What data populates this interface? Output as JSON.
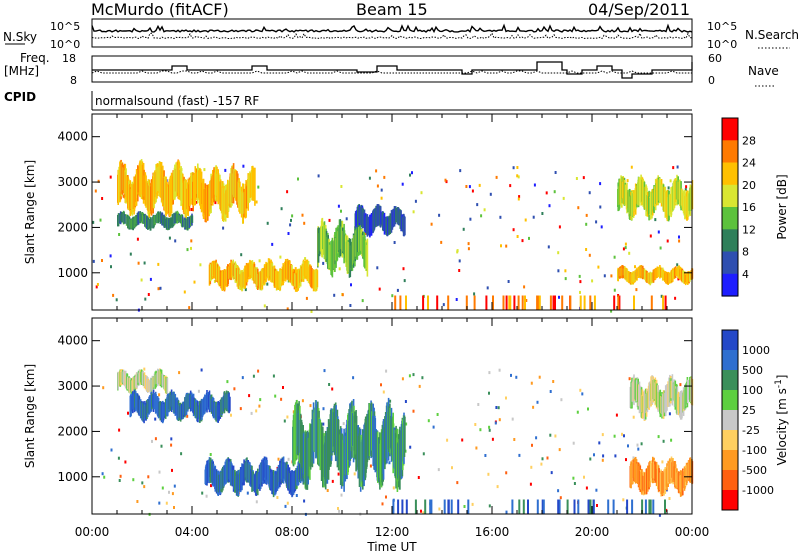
{
  "header": {
    "station": "McMurdo (fitACF)",
    "beam": "Beam 15",
    "date": "04/Sep/2011"
  },
  "top_panels": {
    "nsky_label": "N.Sky",
    "nsky_ticks": [
      "10^5",
      "10^0"
    ],
    "nsearch_label": "N.Search",
    "nsearch_ticks": [
      "10^5",
      "10^0"
    ],
    "freq_label_1": "Freq.",
    "freq_label_2": "[MHz]",
    "freq_ticks": [
      "18",
      "8"
    ],
    "nave_label": "Nave",
    "nave_ticks": [
      "60",
      "0"
    ],
    "cpid_label": "CPID",
    "cpid_text": "normalsound (fast) -157 RF"
  },
  "chart_data": [
    {
      "type": "heatmap",
      "title": "",
      "xlabel": "Time UT",
      "ylabel": "Slant Range [km]",
      "ylim": [
        180,
        4500
      ],
      "yticks": [
        "4000",
        "3000",
        "2000",
        "1000"
      ],
      "xticks": [
        "00:00",
        "04:00",
        "08:00",
        "12:00",
        "16:00",
        "20:00",
        "00:00"
      ],
      "colorbar": {
        "label": "Power [dB]",
        "ticks": [
          "28",
          "24",
          "20",
          "16",
          "12",
          "8",
          "4"
        ],
        "colors": [
          "#ff0000",
          "#ff7a00",
          "#ffc000",
          "#d9e632",
          "#5cc23c",
          "#2f7f5a",
          "#2f4fb0",
          "#1e1eff"
        ]
      },
      "echo_regions_approx": [
        {
          "t_start": "01:00",
          "t_end": "04:00",
          "range_km": [
            2400,
            3300
          ],
          "power_db": 24
        },
        {
          "t_start": "04:00",
          "t_end": "06:30",
          "range_km": [
            2300,
            3200
          ],
          "power_db": 22
        },
        {
          "t_start": "01:00",
          "t_end": "04:00",
          "range_km": [
            2000,
            2300
          ],
          "power_db": 10
        },
        {
          "t_start": "04:40",
          "t_end": "09:00",
          "range_km": [
            700,
            1200
          ],
          "power_db": 22
        },
        {
          "t_start": "09:00",
          "t_end": "11:00",
          "range_km": [
            1100,
            2000
          ],
          "power_db": 14
        },
        {
          "t_start": "10:30",
          "t_end": "12:30",
          "range_km": [
            1900,
            2400
          ],
          "power_db": 8
        },
        {
          "t_start": "21:00",
          "t_end": "24:00",
          "range_km": [
            800,
            1100
          ],
          "power_db": 24
        },
        {
          "t_start": "21:00",
          "t_end": "24:00",
          "range_km": [
            2300,
            3000
          ],
          "power_db": 18
        }
      ]
    },
    {
      "type": "heatmap",
      "title": "",
      "xlabel": "Time UT",
      "ylabel": "Slant Range [km]",
      "ylim": [
        180,
        4500
      ],
      "yticks": [
        "4000",
        "3000",
        "2000",
        "1000"
      ],
      "xticks": [
        "00:00",
        "04:00",
        "08:00",
        "12:00",
        "16:00",
        "20:00",
        "00:00"
      ],
      "colorbar": {
        "label": "Velocity [m s",
        "label_sup": "-1",
        "label_end": "]",
        "ticks": [
          "1000",
          "500",
          "100",
          "25",
          "-25",
          "-100",
          "-500",
          "-1000"
        ],
        "colors": [
          "#2448c8",
          "#2f6fd0",
          "#3a8f5a",
          "#5ed040",
          "#c8c8c8",
          "#ffd060",
          "#ff9a20",
          "#ff6010",
          "#ff0000"
        ]
      },
      "echo_regions_approx": [
        {
          "t_start": "01:00",
          "t_end": "03:00",
          "range_km": [
            2900,
            3300
          ],
          "velocity_ms": 0
        },
        {
          "t_start": "01:30",
          "t_end": "05:30",
          "range_km": [
            2300,
            2800
          ],
          "velocity_ms": 700
        },
        {
          "t_start": "04:30",
          "t_end": "08:30",
          "range_km": [
            700,
            1300
          ],
          "velocity_ms": 700
        },
        {
          "t_start": "08:00",
          "t_end": "12:30",
          "range_km": [
            1000,
            2400
          ],
          "velocity_ms": 200
        },
        {
          "t_start": "21:30",
          "t_end": "24:00",
          "range_km": [
            700,
            1300
          ],
          "velocity_ms": -300
        },
        {
          "t_start": "21:30",
          "t_end": "24:00",
          "range_km": [
            2400,
            3100
          ],
          "velocity_ms": 0
        }
      ]
    }
  ]
}
